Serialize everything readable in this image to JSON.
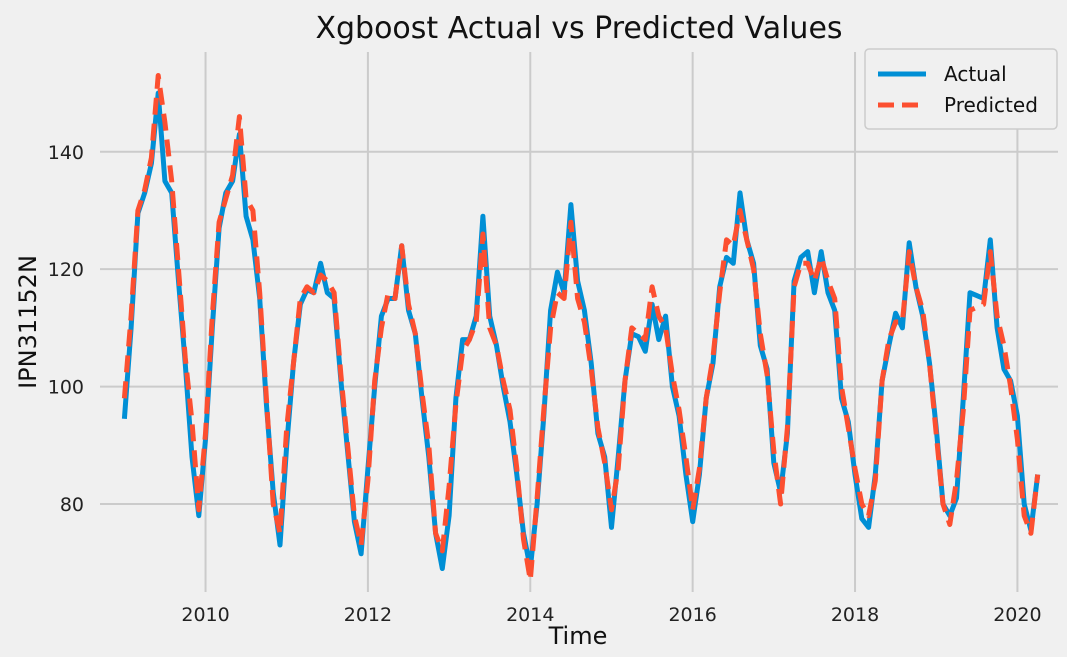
{
  "chart_data": {
    "type": "line",
    "title": "Xgboost Actual vs Predicted Values",
    "xlabel": "Time",
    "ylabel": "IPN31152N",
    "xlim": [
      2008.7,
      2020.5
    ],
    "ylim": [
      65,
      157
    ],
    "x_ticks": [
      {
        "value": 2010,
        "label": "2010"
      },
      {
        "value": 2012,
        "label": "2012"
      },
      {
        "value": 2014,
        "label": "2014"
      },
      {
        "value": 2016,
        "label": "2016"
      },
      {
        "value": 2018,
        "label": "2018"
      },
      {
        "value": 2020,
        "label": "2020"
      }
    ],
    "y_ticks": [
      {
        "value": 80,
        "label": "80"
      },
      {
        "value": 100,
        "label": "100"
      },
      {
        "value": 120,
        "label": "120"
      },
      {
        "value": 140,
        "label": "140"
      }
    ],
    "grid": true,
    "legend_position": "top-right",
    "x_start": 2009.0,
    "x_step_months": 1,
    "series": [
      {
        "name": "Actual",
        "color": "#008fd5",
        "style": "solid",
        "values": [
          94.5,
          110,
          129.5,
          133,
          138,
          150,
          135,
          133,
          118,
          104,
          88,
          78,
          91,
          110,
          127,
          133,
          135,
          143,
          129,
          125,
          115,
          97,
          82,
          73,
          90,
          104,
          114,
          116.5,
          116,
          121,
          116,
          115,
          101,
          89,
          77,
          71.5,
          86,
          100,
          112,
          115,
          115,
          124,
          113,
          109,
          98,
          88,
          75,
          69,
          78,
          98,
          108,
          108,
          112,
          129,
          112,
          107,
          100,
          94,
          85,
          75,
          69,
          80,
          95,
          113,
          119.5,
          116,
          131,
          118,
          113,
          104,
          92,
          88,
          76,
          88,
          101,
          109,
          108.5,
          106,
          114,
          108,
          112,
          100,
          95,
          85,
          77,
          85,
          98,
          104,
          117,
          122,
          121,
          133,
          125,
          121,
          107,
          103,
          87,
          82,
          92,
          118,
          122,
          123,
          116,
          123,
          116,
          113,
          98,
          94,
          85,
          77.5,
          76,
          85,
          101,
          107,
          112.5,
          110,
          124.5,
          117,
          112,
          104,
          93,
          80,
          78,
          81,
          98,
          116,
          115.5,
          115,
          125,
          110,
          103,
          101,
          95,
          80,
          75.5,
          85
        ]
      },
      {
        "name": "Predicted",
        "color": "#fc4f30",
        "style": "dashed",
        "values": [
          98,
          112,
          130,
          133.5,
          139,
          153,
          145,
          135,
          120,
          105,
          94,
          79,
          92,
          112,
          128,
          132,
          136,
          146,
          132,
          130,
          116,
          98,
          80,
          75,
          93,
          104,
          115,
          117,
          116,
          119,
          118,
          116,
          102,
          90,
          78,
          73,
          84,
          101,
          110,
          116,
          115,
          124,
          114,
          109,
          99,
          90,
          75,
          72,
          83,
          97,
          106,
          108,
          111,
          126,
          110,
          107,
          101,
          96,
          86,
          74,
          67,
          81,
          96,
          110,
          116,
          115,
          128,
          115,
          111,
          103,
          93,
          87,
          79,
          86,
          101,
          110,
          109,
          108,
          117,
          112,
          110,
          102,
          96,
          88,
          79,
          86,
          98,
          105,
          116,
          125,
          124,
          130,
          125,
          120,
          109,
          102,
          89,
          80,
          93,
          117,
          121,
          121,
          118,
          122,
          118,
          115,
          100,
          93,
          86,
          80,
          78,
          84,
          101,
          108,
          111,
          111,
          123,
          117,
          113,
          104,
          92,
          80,
          76.5,
          84,
          96,
          113,
          113.5,
          114,
          123,
          112,
          107,
          100,
          91,
          78,
          75,
          85
        ]
      }
    ]
  }
}
